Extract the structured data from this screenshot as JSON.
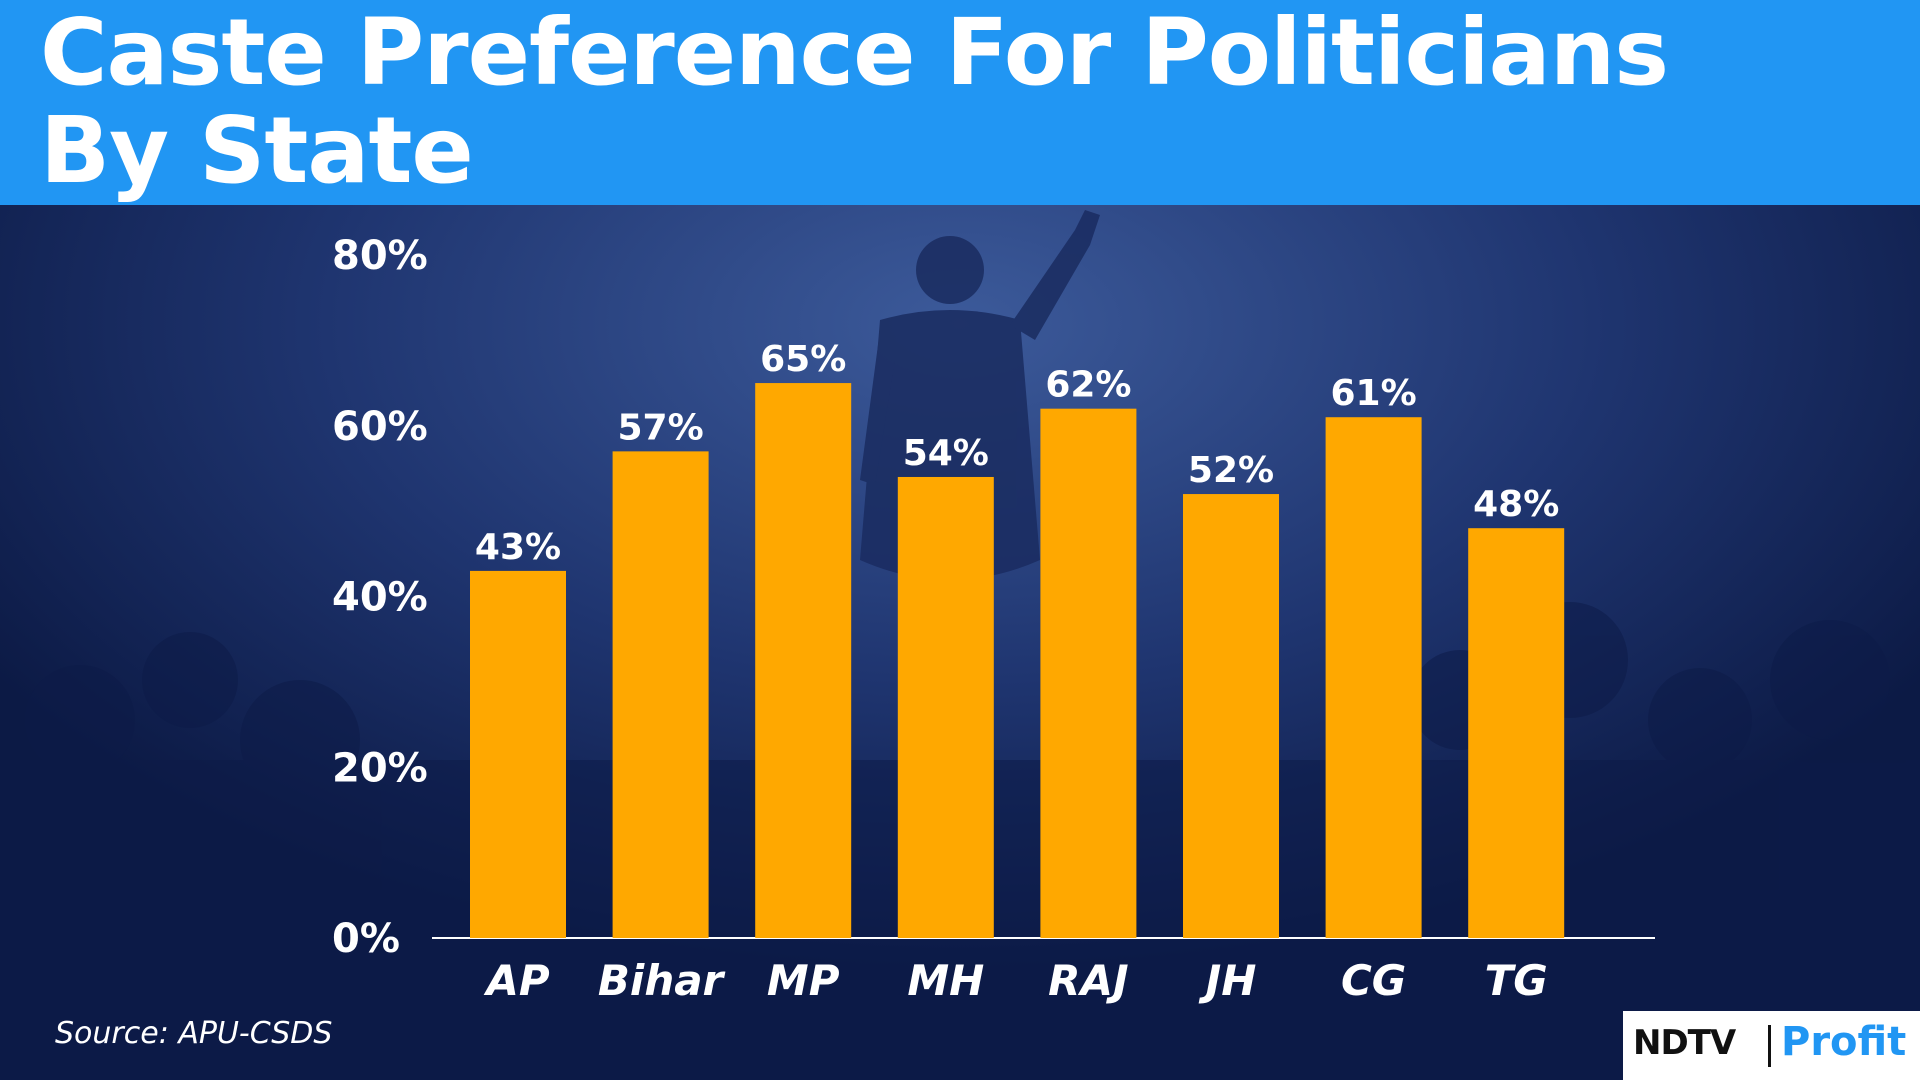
{
  "header": {
    "title": "Caste Preference For Politicians\nBy State"
  },
  "colors": {
    "header_bg": "#2196f3",
    "background": "#0f1f4d",
    "bar": "#ffa800",
    "text": "#ffffff",
    "logo_accent": "#2196f3"
  },
  "chart_data": {
    "type": "bar",
    "categories": [
      "AP",
      "Bihar",
      "MP",
      "MH",
      "RAJ",
      "JH",
      "CG",
      "TG"
    ],
    "values": [
      43,
      57,
      65,
      54,
      62,
      52,
      61,
      48
    ],
    "data_labels": [
      "43%",
      "57%",
      "65%",
      "54%",
      "62%",
      "52%",
      "61%",
      "48%"
    ],
    "title": "Caste Preference For Politicians By State",
    "xlabel": "",
    "ylabel": "",
    "ylim": [
      0,
      80
    ],
    "yticks": [
      0,
      20,
      40,
      60,
      80
    ],
    "ytick_labels": [
      "0%",
      "20%",
      "40%",
      "60%",
      "80%"
    ],
    "grid": false,
    "legend": "none"
  },
  "footer": {
    "source": "Source: APU-CSDS"
  },
  "logo": {
    "brand": "NDTV",
    "product": "Profit"
  }
}
